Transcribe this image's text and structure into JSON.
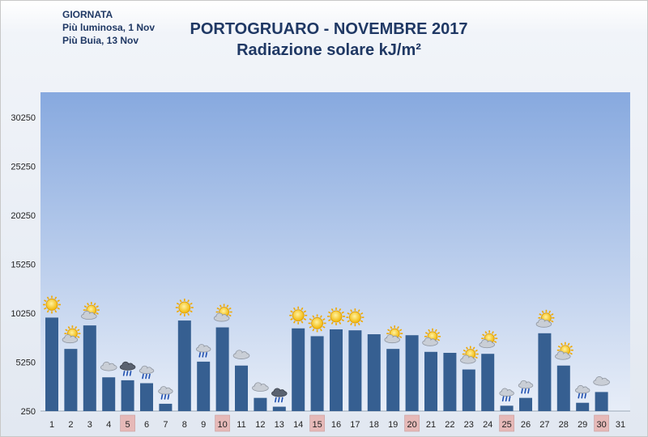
{
  "header": {
    "info_line1": "GIORNATA",
    "info_line2": "Più luminosa, 1 Nov",
    "info_line3": "Più Buia, 13 Nov",
    "title_line1": "PORTOGRUARO - NOVEMBRE 2017",
    "title_line2": "Radiazione solare kJ/m²"
  },
  "chart_data": {
    "type": "bar",
    "title": "PORTOGRUARO - NOVEMBRE 2017",
    "subtitle": "Radiazione solare kJ/m²",
    "categories": [
      "1",
      "2",
      "3",
      "4",
      "5",
      "6",
      "7",
      "8",
      "9",
      "10",
      "11",
      "12",
      "13",
      "14",
      "15",
      "16",
      "17",
      "18",
      "19",
      "20",
      "21",
      "22",
      "23",
      "24",
      "25",
      "26",
      "27",
      "28",
      "29",
      "30",
      "31"
    ],
    "values": [
      9800,
      6600,
      9000,
      3700,
      3400,
      3100,
      1000,
      9500,
      5300,
      8800,
      4900,
      1600,
      700,
      8700,
      7900,
      8600,
      8500,
      8100,
      6600,
      8000,
      6300,
      6200,
      4500,
      6100,
      800,
      1600,
      8200,
      4900,
      1100,
      2200,
      0
    ],
    "weekend_days": [
      "5",
      "10",
      "15",
      "20",
      "25",
      "30"
    ],
    "weather_icons": [
      "sun",
      "partly-cloudy",
      "partly-cloudy",
      "cloud",
      "rain",
      "cloud-rain",
      "cloud-rain",
      "sun",
      "cloud-rain",
      "partly-cloudy",
      "cloud",
      "cloud",
      "rain",
      "sun",
      "sun",
      "sun",
      "sun",
      "none",
      "partly-cloudy",
      "none",
      "partly-cloudy",
      "none",
      "partly-cloudy",
      "partly-cloudy",
      "cloud-rain",
      "cloud-rain",
      "partly-cloudy",
      "partly-cloudy",
      "cloud-rain",
      "cloud",
      "none"
    ],
    "ylim": [
      250,
      32000
    ],
    "yticks": [
      250,
      5250,
      10250,
      15250,
      20250,
      25250,
      30250
    ],
    "grid": false,
    "colors": {
      "bar": "#365f91",
      "plot_top": "#87a9df",
      "plot_bottom": "#e8eef8",
      "weekend": "#e6b9b8"
    }
  }
}
